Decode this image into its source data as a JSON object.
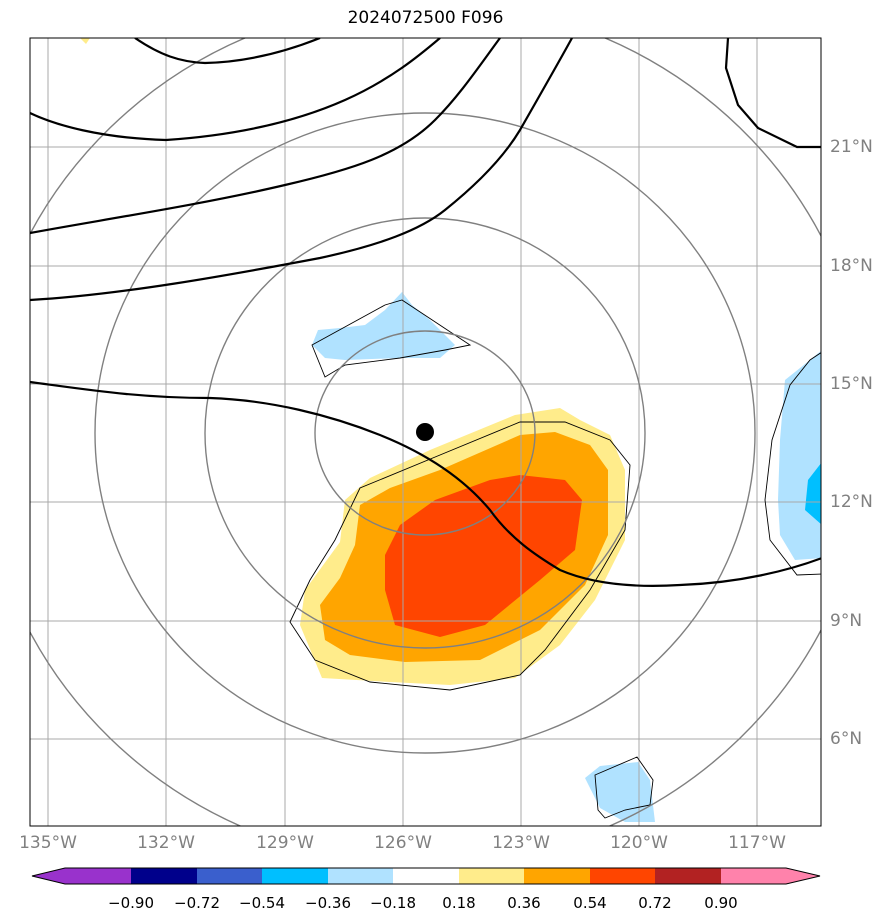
{
  "title": "2024072500 F096",
  "map": {
    "lon_labels": [
      "135°W",
      "132°W",
      "129°W",
      "126°W",
      "123°W",
      "120°W",
      "117°W"
    ],
    "lat_labels": [
      "21°N",
      "18°N",
      "15°N",
      "12°N",
      "9°N",
      "6°N"
    ],
    "marker": "storm-center-dot"
  },
  "colorbar": {
    "levels": [
      "−0.90",
      "−0.72",
      "−0.54",
      "−0.36",
      "−0.18",
      "0.18",
      "0.36",
      "0.54",
      "0.72",
      "0.90"
    ],
    "colors": [
      "#9932cc",
      "#00008b",
      "#3a5fcd",
      "#00bfff",
      "#b0e2ff",
      "#ffffff",
      "#ffec8b",
      "#ffa500",
      "#ff4500",
      "#b22222",
      "#ff82ab"
    ]
  }
}
